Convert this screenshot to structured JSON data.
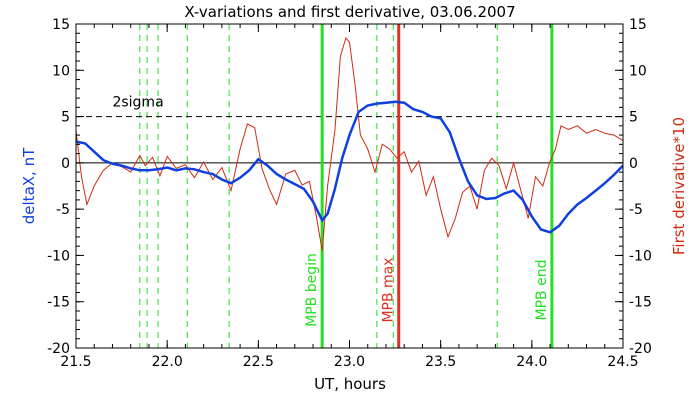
{
  "chart_data": {
    "type": "line",
    "title": "X-variations and first derivative, 03.06.2007",
    "xlabel": "UT, hours",
    "ylabel_left": "deltaX, nT",
    "ylabel_right": "First derivative*10",
    "xlim": [
      21.5,
      24.5
    ],
    "ylim": [
      -20,
      15
    ],
    "x_ticks": [
      "21.5",
      "22.0",
      "22.5",
      "23.0",
      "23.5",
      "24.0",
      "24.5"
    ],
    "y_ticks": [
      "-20",
      "-15",
      "-10",
      "-5",
      "0",
      "5",
      "10",
      "15"
    ],
    "threshold_label": "2sigma",
    "threshold_value": 5,
    "zero_line": 0,
    "colors": {
      "deltaX": "#1040e0",
      "derivative": "#d02a10",
      "mpb_begin_end": "#22e022",
      "mpb_max": "#e03020",
      "dashed_markers": "#22dd22",
      "frame": "#000000"
    },
    "dashed_markers_x": [
      21.85,
      21.89,
      21.95,
      22.11,
      22.34,
      23.15,
      23.24,
      23.81
    ],
    "markers": [
      {
        "label": "MPB begin",
        "x": 22.85,
        "color": "#22e022"
      },
      {
        "label": "MPB max",
        "x": 23.27,
        "color": "#e03020"
      },
      {
        "label": "MPB end",
        "x": 24.11,
        "color": "#22e022"
      }
    ],
    "series": [
      {
        "name": "deltaX, nT",
        "x": [
          21.5,
          21.55,
          21.6,
          21.65,
          21.7,
          21.75,
          21.8,
          21.85,
          21.9,
          21.95,
          22.0,
          22.05,
          22.1,
          22.15,
          22.2,
          22.25,
          22.3,
          22.35,
          22.4,
          22.45,
          22.5,
          22.55,
          22.6,
          22.65,
          22.7,
          22.75,
          22.8,
          22.85,
          22.88,
          22.92,
          22.96,
          23.0,
          23.05,
          23.1,
          23.15,
          23.2,
          23.25,
          23.3,
          23.35,
          23.4,
          23.45,
          23.5,
          23.55,
          23.6,
          23.65,
          23.7,
          23.75,
          23.8,
          23.85,
          23.9,
          23.95,
          24.0,
          24.05,
          24.1,
          24.15,
          24.2,
          24.25,
          24.3,
          24.35,
          24.4,
          24.45,
          24.5
        ],
        "y": [
          2.3,
          2.1,
          1.2,
          0.3,
          -0.1,
          -0.3,
          -0.6,
          -0.8,
          -0.8,
          -0.7,
          -0.5,
          -0.8,
          -0.6,
          -0.7,
          -1.0,
          -1.2,
          -1.8,
          -2.2,
          -1.6,
          -0.8,
          0.4,
          -0.3,
          -1.2,
          -1.8,
          -2.3,
          -2.8,
          -4.2,
          -6.2,
          -5.5,
          -2.8,
          0.5,
          3.0,
          5.5,
          6.2,
          6.4,
          6.5,
          6.6,
          6.5,
          5.8,
          5.5,
          5.0,
          4.8,
          3.3,
          0.5,
          -2.0,
          -3.5,
          -3.9,
          -3.8,
          -3.3,
          -3.0,
          -4.0,
          -5.8,
          -7.2,
          -7.5,
          -6.8,
          -5.5,
          -4.5,
          -3.8,
          -3.0,
          -2.2,
          -1.3,
          -0.3
        ]
      },
      {
        "name": "First derivative*10",
        "x": [
          21.5,
          21.53,
          21.56,
          21.6,
          21.65,
          21.7,
          21.75,
          21.8,
          21.85,
          21.88,
          21.92,
          21.96,
          22.0,
          22.05,
          22.1,
          22.15,
          22.2,
          22.25,
          22.3,
          22.35,
          22.4,
          22.44,
          22.48,
          22.52,
          22.56,
          22.6,
          22.65,
          22.7,
          22.74,
          22.78,
          22.82,
          22.85,
          22.88,
          22.92,
          22.95,
          22.98,
          23.0,
          23.03,
          23.06,
          23.1,
          23.14,
          23.18,
          23.22,
          23.26,
          23.3,
          23.34,
          23.38,
          23.42,
          23.46,
          23.5,
          23.54,
          23.58,
          23.62,
          23.66,
          23.7,
          23.74,
          23.78,
          23.82,
          23.86,
          23.9,
          23.94,
          23.98,
          24.02,
          24.06,
          24.1,
          24.13,
          24.16,
          24.2,
          24.25,
          24.3,
          24.35,
          24.4,
          24.45,
          24.5
        ],
        "y": [
          3.5,
          -1.5,
          -4.5,
          -2.5,
          -0.8,
          0.0,
          -0.4,
          -1.0,
          0.8,
          -0.3,
          0.6,
          -1.4,
          0.7,
          -0.6,
          -0.2,
          -1.6,
          0.1,
          -1.8,
          -0.5,
          -3.0,
          1.5,
          4.2,
          3.8,
          -0.6,
          -2.8,
          -4.5,
          -1.2,
          -0.8,
          -2.4,
          -2.0,
          -6.0,
          -9.5,
          -2.5,
          3.5,
          11.5,
          13.5,
          13.0,
          8.5,
          3.0,
          1.5,
          -1.0,
          2.0,
          1.5,
          0.5,
          1.2,
          -1.0,
          0.2,
          -3.5,
          -1.5,
          -5.0,
          -8.0,
          -6.0,
          -3.2,
          -2.5,
          -5.0,
          -0.8,
          0.5,
          -0.3,
          -2.8,
          0.0,
          -3.0,
          -6.0,
          -1.5,
          -2.5,
          0.2,
          1.5,
          4.0,
          3.6,
          4.0,
          3.2,
          3.6,
          3.2,
          3.0,
          2.4
        ]
      }
    ]
  }
}
